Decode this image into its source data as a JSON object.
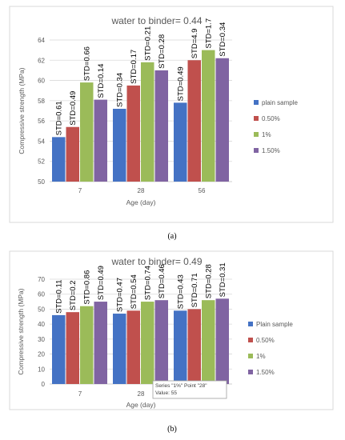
{
  "chart_data": [
    {
      "type": "bar",
      "title": "water to binder= 0.44",
      "xlabel": "Age (day)",
      "ylabel": "Compressive strength (MPa)",
      "ylim": [
        50,
        64
      ],
      "yticks": [
        50,
        52,
        54,
        56,
        58,
        60,
        62,
        64
      ],
      "grid": true,
      "legend_position": "right",
      "categories": [
        "7",
        "28",
        "56"
      ],
      "series": [
        {
          "name": "plain sample",
          "color": "#4472C4",
          "values": [
            54.4,
            57.2,
            57.8
          ],
          "labels": [
            "STD=0.61",
            "STD=0.34",
            "STD=0.49"
          ]
        },
        {
          "name": "0.50%",
          "color": "#C0504D",
          "values": [
            55.4,
            59.5,
            62.0
          ],
          "labels": [
            "STD=0.49",
            "STD=0.17",
            "STD=4.9"
          ]
        },
        {
          "name": "1%",
          "color": "#9BBB59",
          "values": [
            59.8,
            61.8,
            63.0
          ],
          "labels": [
            "STD=0.66",
            "STD=0.21",
            "STD=1.7"
          ]
        },
        {
          "name": "1.50%",
          "color": "#8064A2",
          "values": [
            58.1,
            61.0,
            62.2
          ],
          "labels": [
            "STD=0.14",
            "STD=0.28",
            "STD=0.34"
          ]
        }
      ],
      "caption": "(a)"
    },
    {
      "type": "bar",
      "title": "water to binder= 0.49",
      "xlabel": "Age (day)",
      "ylabel": "Compressive strength (MPa)",
      "ylim": [
        0,
        70
      ],
      "yticks": [
        0,
        10,
        20,
        30,
        40,
        50,
        60,
        70
      ],
      "grid": true,
      "legend_position": "right",
      "categories": [
        "7",
        "28",
        "56"
      ],
      "series": [
        {
          "name": "Plain sample",
          "color": "#4472C4",
          "values": [
            46,
            47,
            49
          ],
          "labels": [
            "STD=0.11",
            "STD=0.47",
            "STD=0.43"
          ]
        },
        {
          "name": "0.50%",
          "color": "#C0504D",
          "values": [
            48,
            49,
            50
          ],
          "labels": [
            "STD=0.2",
            "STD=0.54",
            "STD=0.71"
          ]
        },
        {
          "name": "1%",
          "color": "#9BBB59",
          "values": [
            52,
            55,
            56
          ],
          "labels": [
            "STD=0.86",
            "STD=0.74",
            "STD=0.28"
          ]
        },
        {
          "name": "1.50%",
          "color": "#8064A2",
          "values": [
            55,
            56,
            57
          ],
          "labels": [
            "STD=0.49",
            "STD=0.46",
            "STD=0.31"
          ]
        }
      ],
      "tooltip": {
        "line1": "Series \"1%\" Point \"28\"",
        "line2": "Value: 55"
      },
      "caption": "(b)"
    }
  ]
}
